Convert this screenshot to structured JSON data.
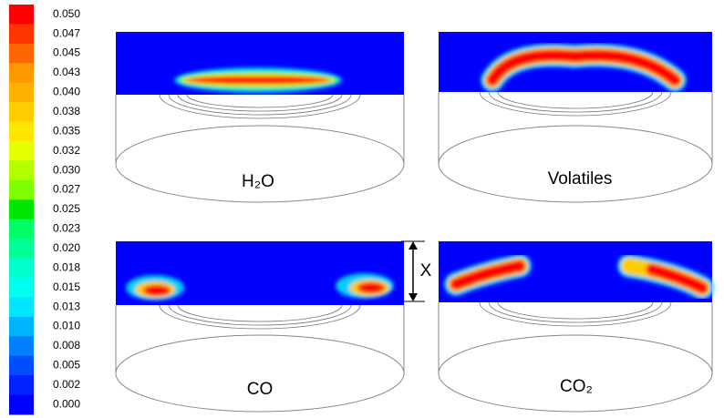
{
  "colorbar": {
    "labels": [
      "0.050",
      "0.047",
      "0.045",
      "0.043",
      "0.040",
      "0.038",
      "0.035",
      "0.032",
      "0.030",
      "0.027",
      "0.025",
      "0.023",
      "0.020",
      "0.018",
      "0.015",
      "0.013",
      "0.010",
      "0.008",
      "0.005",
      "0.002",
      "0.000"
    ],
    "colors": [
      "#ff0000",
      "#ff3300",
      "#ff6600",
      "#ff9900",
      "#ffb300",
      "#ffcc00",
      "#ffe600",
      "#e6ff00",
      "#b3ff00",
      "#80ff00",
      "#00e600",
      "#00ff66",
      "#00ff99",
      "#00ffcc",
      "#00ffee",
      "#00e6ff",
      "#00b3ff",
      "#0080ff",
      "#004dff",
      "#0022ff",
      "#0000ff"
    ]
  },
  "panels": [
    {
      "label": "H₂O"
    },
    {
      "label": "Volatiles"
    },
    {
      "label": "CO"
    },
    {
      "label": "CO₂"
    }
  ],
  "dimension": {
    "label": "X"
  }
}
